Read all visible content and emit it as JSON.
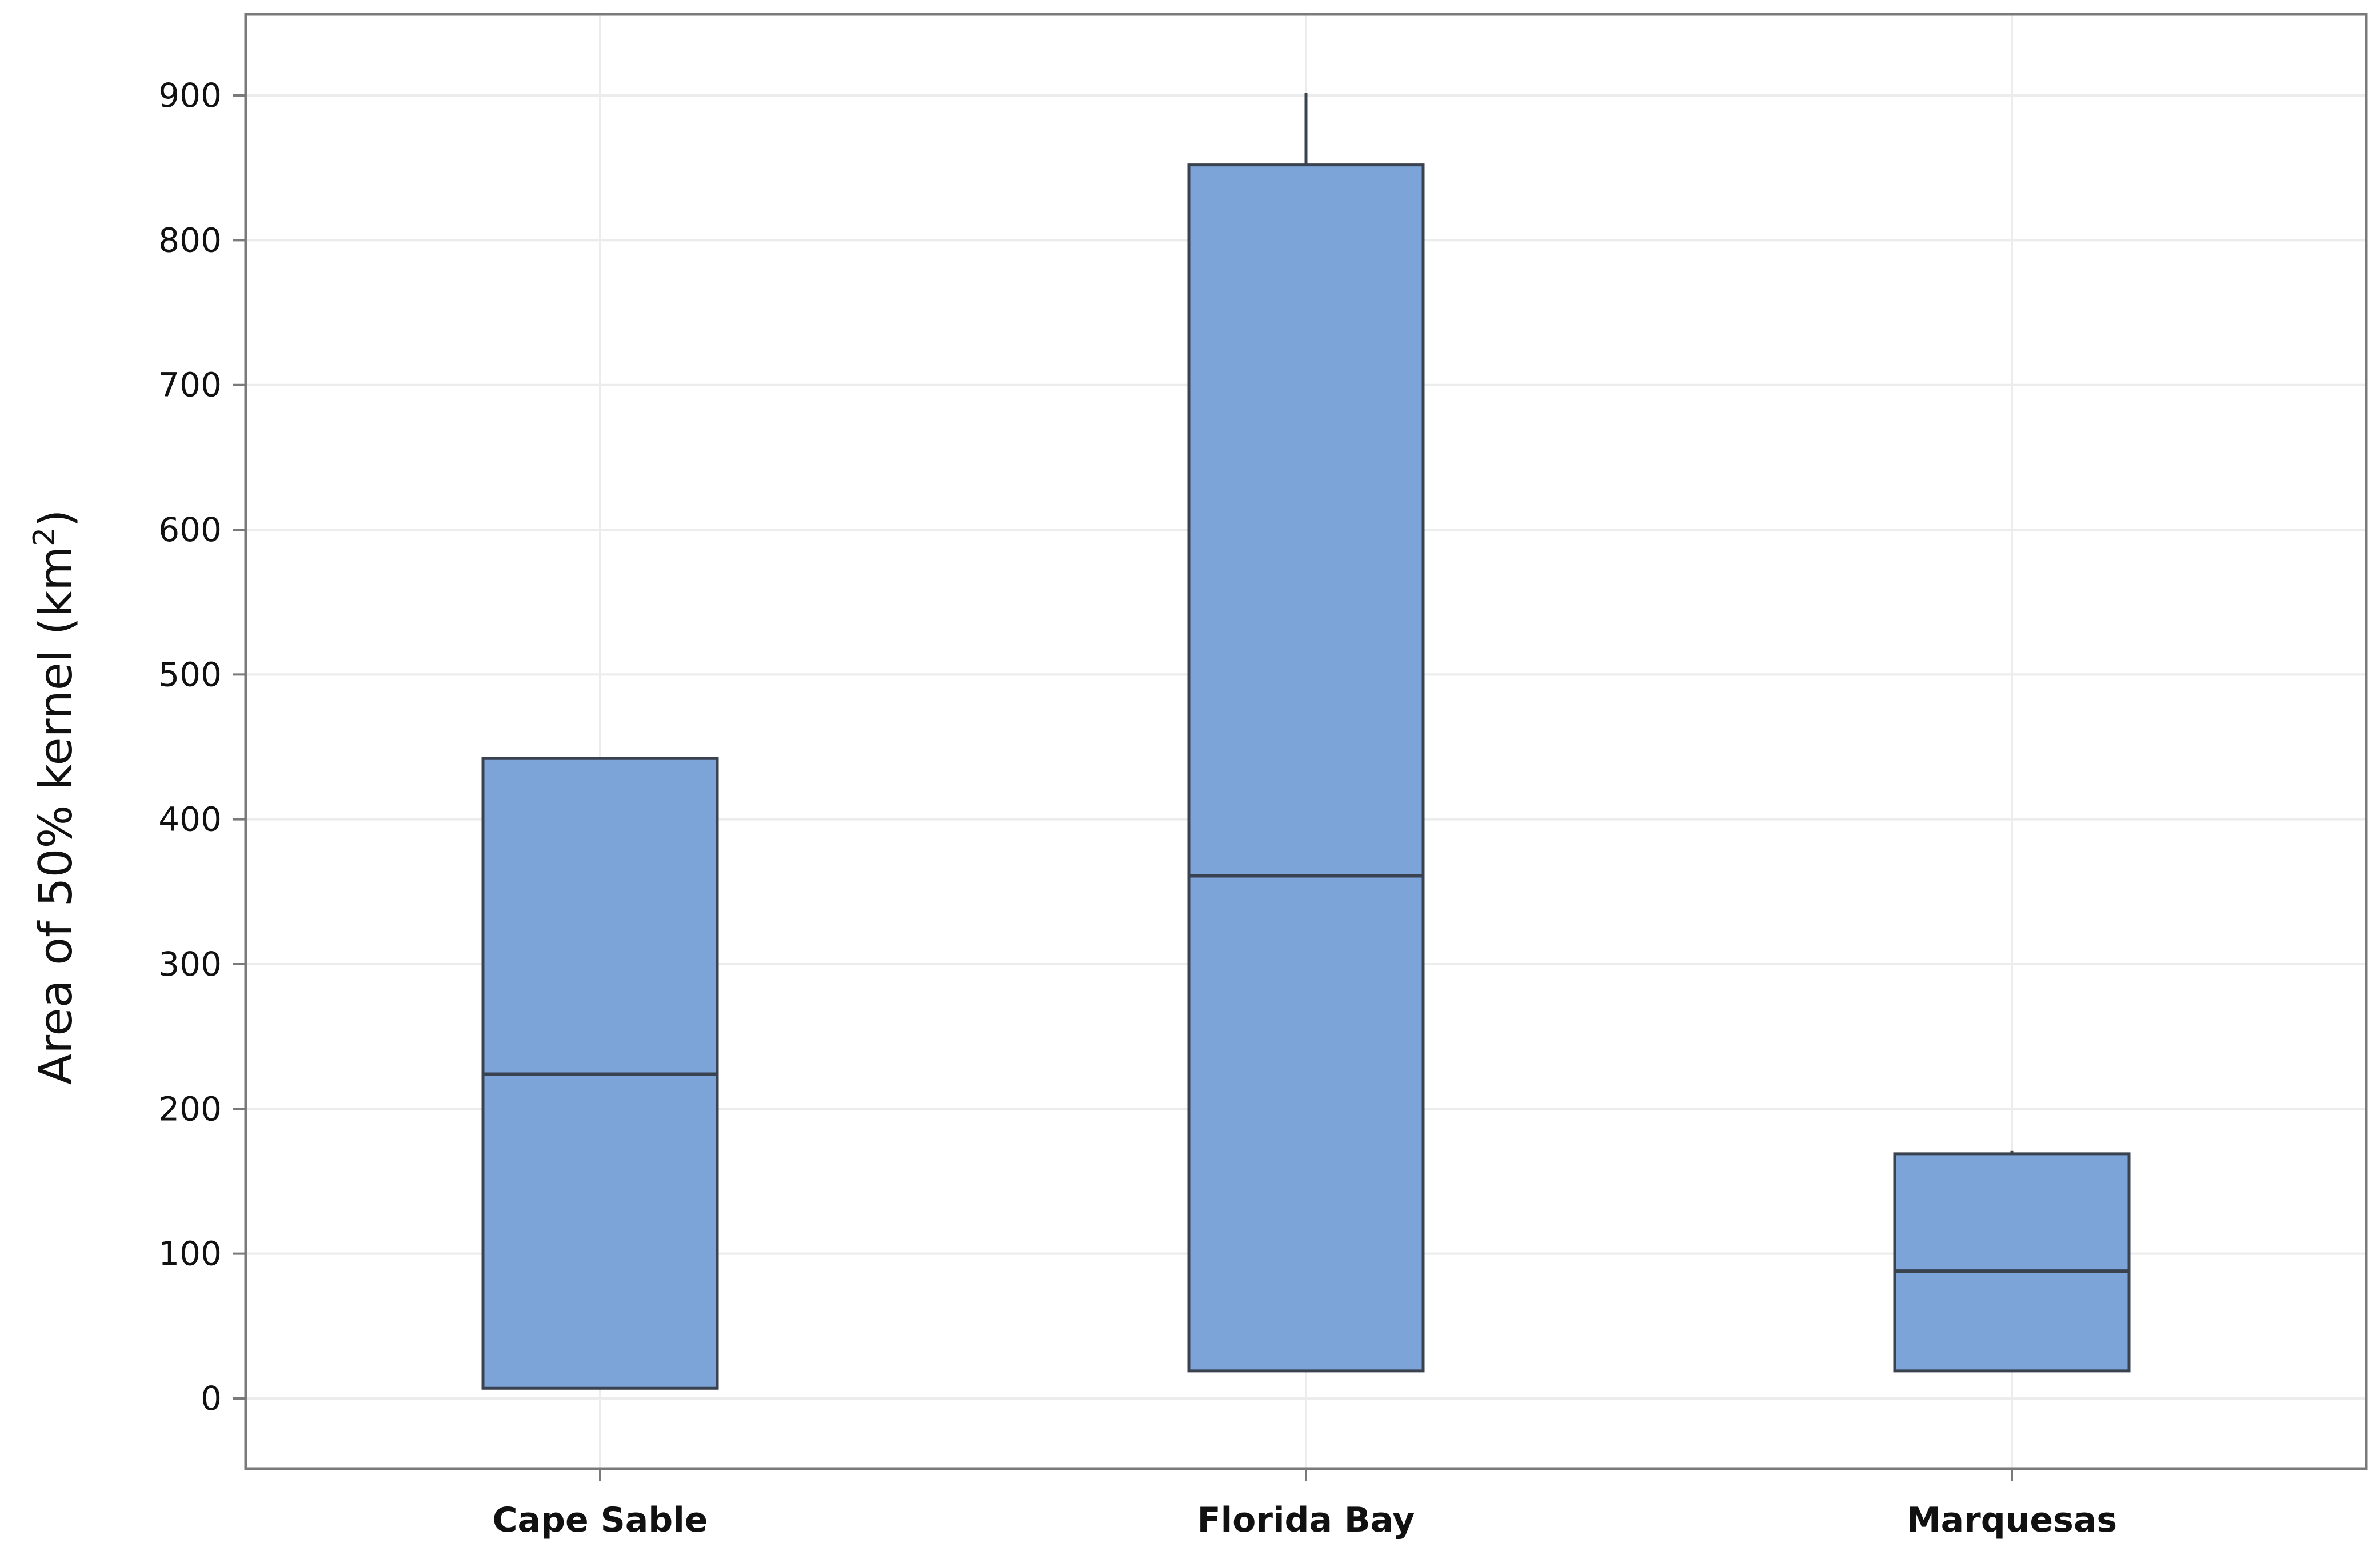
{
  "chart_data": {
    "type": "box",
    "ylabel": "Area of 50% kernel (km",
    "ylabel_sup": "2",
    "ylabel_close": ")",
    "xlabel": "",
    "ylim": [
      -50,
      1000
    ],
    "yticks": [
      0,
      100,
      200,
      300,
      400,
      500,
      600,
      700,
      800,
      900
    ],
    "grid": true,
    "categories": [
      "Cape Sable",
      "Florida Bay",
      "Marquesas"
    ],
    "boxes": [
      {
        "category": "Cape Sable",
        "min": 7,
        "q1": 7,
        "median": 224,
        "q3": 442,
        "max": 442
      },
      {
        "category": "Florida Bay",
        "min": 19,
        "q1": 19,
        "median": 361,
        "q3": 852,
        "max": 902
      },
      {
        "category": "Marquesas",
        "min": 19,
        "q1": 19,
        "median": 88,
        "q3": 169,
        "max": 171
      }
    ],
    "colors": {
      "box_fill": "#7ca4d8",
      "box_stroke": "#3a4250",
      "grid": "#ececec",
      "frame": "#7a7a7a"
    }
  }
}
